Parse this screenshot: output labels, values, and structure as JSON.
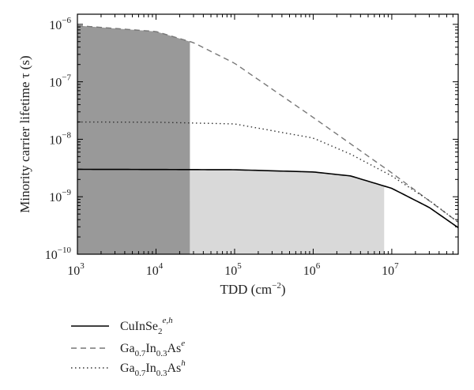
{
  "chart_data": {
    "type": "line",
    "xlabel": "TDD (cm",
    "xlabel_sup": "−2",
    "xlabel_end": ")",
    "ylabel": "Minority carrier lifetime τ (s)",
    "x_scale": "log",
    "y_scale": "log",
    "xlim": [
      1000,
      70000000
    ],
    "ylim": [
      1e-10,
      1.5e-06
    ],
    "x_ticks": [
      {
        "value": 1000,
        "base": "10",
        "exp": "3"
      },
      {
        "value": 10000,
        "base": "10",
        "exp": "4"
      },
      {
        "value": 100000,
        "base": "10",
        "exp": "5"
      },
      {
        "value": 1000000,
        "base": "10",
        "exp": "6"
      },
      {
        "value": 10000000,
        "base": "10",
        "exp": "7"
      }
    ],
    "y_ticks": [
      {
        "value": 1e-10,
        "base": "10",
        "exp": "−10"
      },
      {
        "value": 1e-09,
        "base": "10",
        "exp": "−9"
      },
      {
        "value": 1e-08,
        "base": "10",
        "exp": "−8"
      },
      {
        "value": 1e-07,
        "base": "10",
        "exp": "−7"
      },
      {
        "value": 1e-06,
        "base": "10",
        "exp": "−6"
      }
    ],
    "grid": false,
    "legend_position": "below",
    "series": [
      {
        "name": "CuInSe2 e,h",
        "legend_main": "CuInSe",
        "legend_sub": "2",
        "legend_sup": "e,h",
        "style": "solid",
        "color": "#000000",
        "tau0": 3e-09,
        "x": [
          1000,
          10000,
          100000,
          1000000,
          3000000,
          10000000,
          30000000,
          70000000
        ],
        "values": [
          3e-09,
          2.98e-09,
          2.95e-09,
          2.7e-09,
          2.3e-09,
          1.4e-09,
          6.5e-10,
          2.9e-10
        ]
      },
      {
        "name": "Ga0.7In0.3As e",
        "legend_main": "Ga",
        "legend_sub1": "0.7",
        "legend_mid": "In",
        "legend_sub2": "0.3",
        "legend_end": "As",
        "legend_sup": "e",
        "style": "dashed",
        "color": "#777777",
        "tau0": 1e-06,
        "x": [
          1000,
          10000,
          30000,
          100000,
          1000000,
          10000000,
          30000000,
          70000000
        ],
        "values": [
          9.5e-07,
          7.5e-07,
          4.8e-07,
          2.1e-07,
          2.4e-08,
          2.6e-09,
          8.5e-10,
          3.6e-10
        ]
      },
      {
        "name": "Ga0.7In0.3As h",
        "legend_main": "Ga",
        "legend_sub1": "0.7",
        "legend_mid": "In",
        "legend_sub2": "0.3",
        "legend_end": "As",
        "legend_sup": "h",
        "style": "dotted",
        "color": "#333333",
        "tau0": 2e-08,
        "x": [
          1000,
          10000,
          100000,
          1000000,
          3000000,
          10000000,
          30000000,
          70000000
        ],
        "values": [
          2e-08,
          1.98e-08,
          1.85e-08,
          1.05e-08,
          5.5e-09,
          2.3e-09,
          8.6e-10,
          3.6e-10
        ]
      }
    ],
    "shaded_regions": [
      {
        "x0": 1000,
        "x1": 27000,
        "color": "#999999",
        "top_series": 1
      },
      {
        "x0": 27000,
        "x1": 8000000,
        "color": "#d9d9d9",
        "top_series": 0
      }
    ]
  }
}
